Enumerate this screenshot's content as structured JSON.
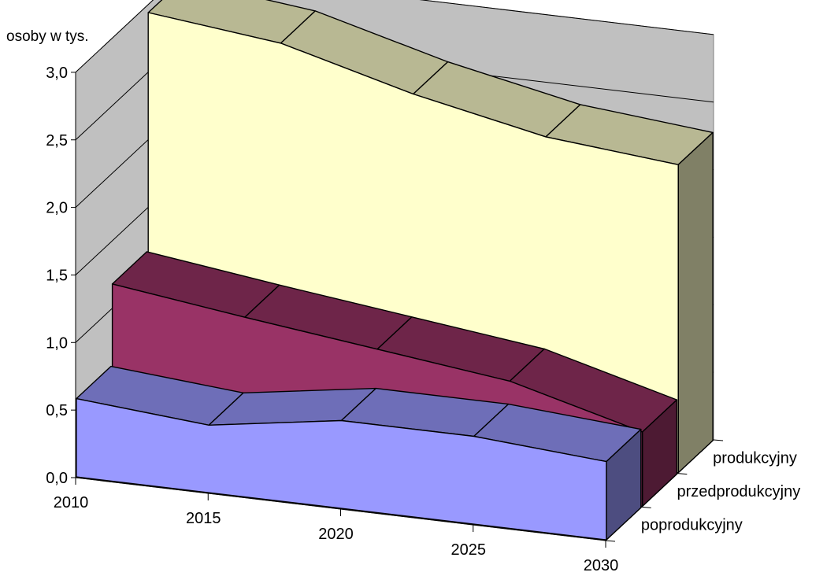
{
  "chart_data": {
    "type": "area",
    "style": "3d-ribbon",
    "ylabel": "osoby w tys.",
    "ylim": [
      0,
      3
    ],
    "yticks": [
      "0,0",
      "0,5",
      "1,0",
      "1,5",
      "2,0",
      "2,5",
      "3,0"
    ],
    "x": [
      "2010",
      "2015",
      "2020",
      "2025",
      "2030"
    ],
    "grid": true,
    "series": [
      {
        "name": "produkcyjny",
        "values": [
          2.94,
          2.83,
          2.57,
          2.37,
          2.28
        ],
        "color": "#ffffcc"
      },
      {
        "name": "przedprodukcyjny",
        "values": [
          1.18,
          1.05,
          0.93,
          0.81,
          0.55
        ],
        "color": "#993366"
      },
      {
        "name": "poprodukcyjny",
        "values": [
          0.58,
          0.5,
          0.65,
          0.65,
          0.58
        ],
        "color": "#9999ff"
      }
    ]
  }
}
